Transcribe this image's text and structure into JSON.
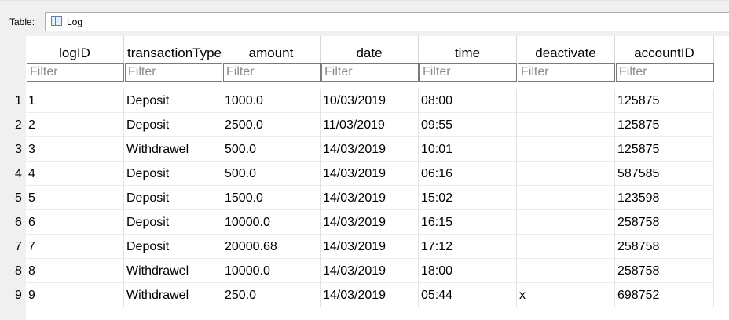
{
  "toolbar": {
    "label": "Table:",
    "table_name": "Log",
    "table_icon": "table-icon"
  },
  "columns": [
    {
      "name": "logID",
      "filter_placeholder": "Filter"
    },
    {
      "name": "transactionType",
      "filter_placeholder": "Filter"
    },
    {
      "name": "amount",
      "filter_placeholder": "Filter"
    },
    {
      "name": "date",
      "filter_placeholder": "Filter"
    },
    {
      "name": "time",
      "filter_placeholder": "Filter"
    },
    {
      "name": "deactivate",
      "filter_placeholder": "Filter"
    },
    {
      "name": "accountID",
      "filter_placeholder": "Filter"
    }
  ],
  "rows": [
    {
      "rownum": "1",
      "cells": [
        "1",
        "Deposit",
        "1000.0",
        "10/03/2019",
        "08:00",
        "",
        "125875"
      ]
    },
    {
      "rownum": "2",
      "cells": [
        "2",
        "Deposit",
        "2500.0",
        "11/03/2019",
        "09:55",
        "",
        "125875"
      ]
    },
    {
      "rownum": "3",
      "cells": [
        "3",
        "Withdrawel",
        "500.0",
        "14/03/2019",
        "10:01",
        "",
        "125875"
      ]
    },
    {
      "rownum": "4",
      "cells": [
        "4",
        "Deposit",
        "500.0",
        "14/03/2019",
        "06:16",
        "",
        "587585"
      ]
    },
    {
      "rownum": "5",
      "cells": [
        "5",
        "Deposit",
        "1500.0",
        "14/03/2019",
        "15:02",
        "",
        "123598"
      ]
    },
    {
      "rownum": "6",
      "cells": [
        "6",
        "Deposit",
        "10000.0",
        "14/03/2019",
        "16:15",
        "",
        "258758"
      ]
    },
    {
      "rownum": "7",
      "cells": [
        "7",
        "Deposit",
        "20000.68",
        "14/03/2019",
        "17:12",
        "",
        "258758"
      ]
    },
    {
      "rownum": "8",
      "cells": [
        "8",
        "Withdrawel",
        "10000.0",
        "14/03/2019",
        "18:00",
        "",
        "258758"
      ]
    },
    {
      "rownum": "9",
      "cells": [
        "9",
        "Withdrawel",
        "250.0",
        "14/03/2019",
        "05:44",
        "x",
        "698752"
      ]
    }
  ]
}
